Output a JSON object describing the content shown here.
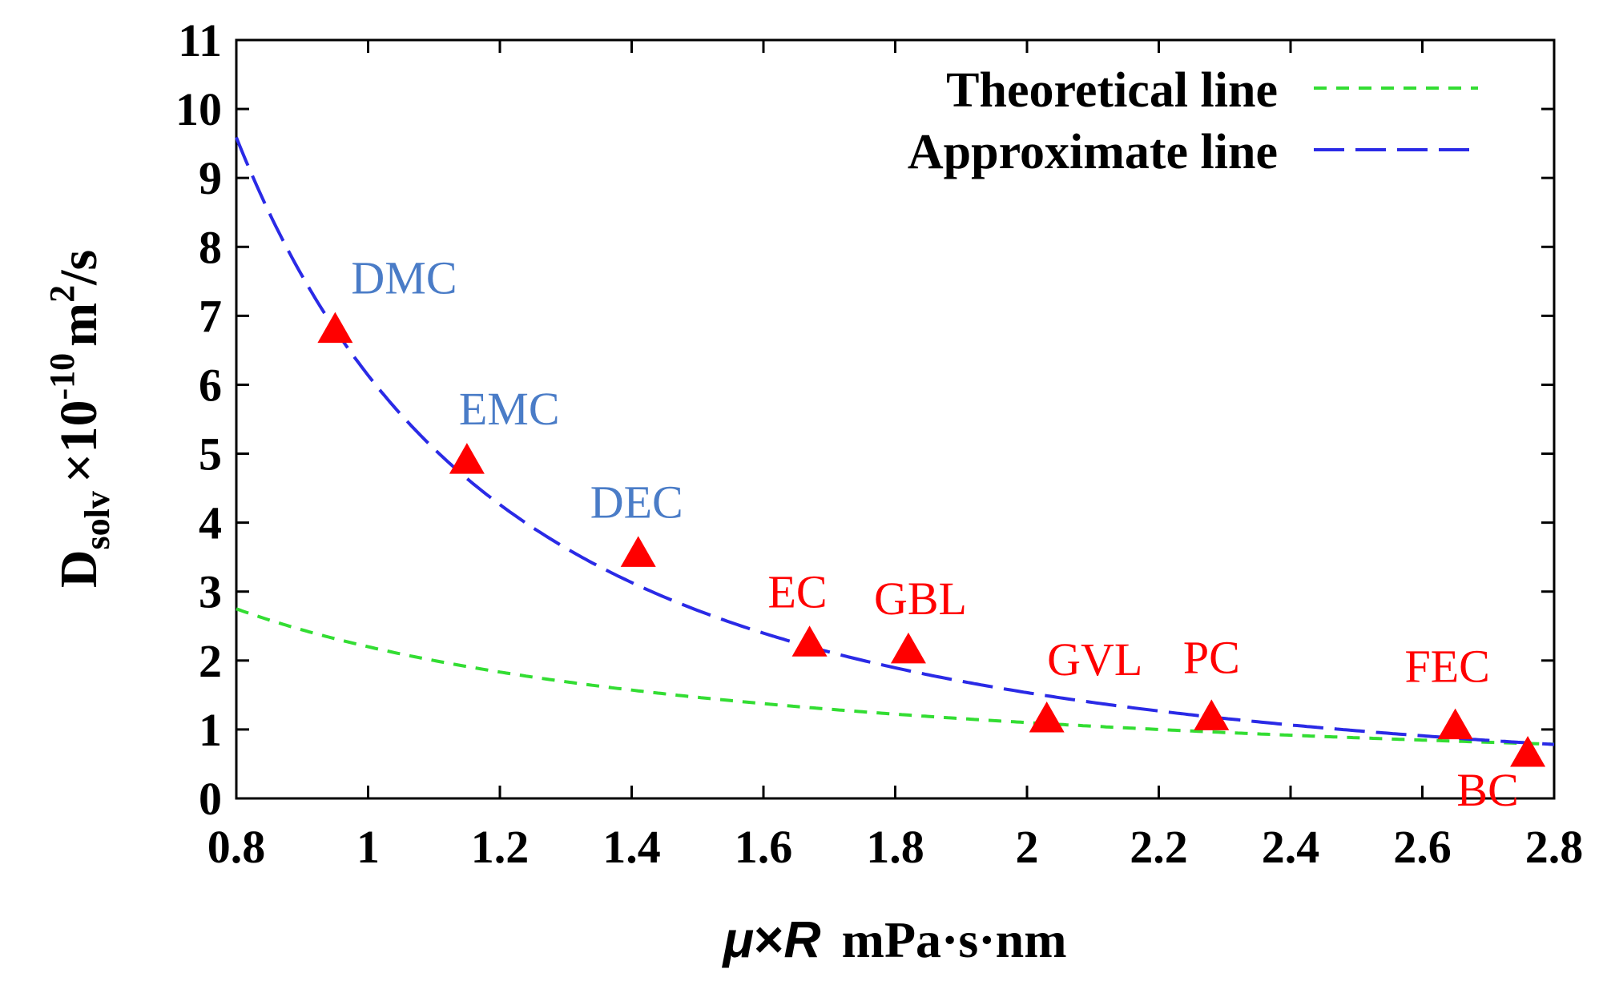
{
  "chart_data": {
    "type": "scatter",
    "title": "",
    "xlabel": {
      "symbol_mu": "μ",
      "times": "×",
      "symbol_R": "R",
      "unit": "mPa·s·nm"
    },
    "ylabel": {
      "base": "D",
      "sub": "solv",
      "mult": "×10",
      "exp": "-10",
      "unit_m": "m",
      "unit_exp": "2",
      "unit_s": "/s"
    },
    "xlim": [
      0.8,
      2.8
    ],
    "ylim": [
      0,
      11
    ],
    "xticks": [
      "0.8",
      "1",
      "1.2",
      "1.4",
      "1.6",
      "1.8",
      "2",
      "2.2",
      "2.4",
      "2.6",
      "2.8"
    ],
    "yticks": [
      "0",
      "1",
      "2",
      "3",
      "4",
      "5",
      "6",
      "7",
      "8",
      "9",
      "10",
      "11"
    ],
    "grid": false,
    "legend_position": "top-right",
    "colors": {
      "theoretical": "#33dd33",
      "approximate": "#2a2ae6",
      "points": "#ff0000",
      "label_blue": "#4a7cc7",
      "label_red": "#ff0000"
    },
    "series": [
      {
        "name": "Theoretical line",
        "kind": "line",
        "style": "dashed",
        "curve": "y = 2.2 / x"
      },
      {
        "name": "Approximate line",
        "kind": "line",
        "style": "long-dashed",
        "curve": "y = 6.8 * (x / 0.95)^-2"
      }
    ],
    "points": [
      {
        "label": "DMC",
        "x": 0.95,
        "y": 6.8,
        "label_color": "blue"
      },
      {
        "label": "EMC",
        "x": 1.15,
        "y": 4.9,
        "label_color": "blue"
      },
      {
        "label": "DEC",
        "x": 1.41,
        "y": 3.55,
        "label_color": "blue"
      },
      {
        "label": "EC",
        "x": 1.67,
        "y": 2.25,
        "label_color": "red"
      },
      {
        "label": "GBL",
        "x": 1.82,
        "y": 2.15,
        "label_color": "red"
      },
      {
        "label": "GVL",
        "x": 2.03,
        "y": 1.15,
        "label_color": "red"
      },
      {
        "label": "PC",
        "x": 2.28,
        "y": 1.18,
        "label_color": "red"
      },
      {
        "label": "FEC",
        "x": 2.65,
        "y": 1.05,
        "label_color": "red"
      },
      {
        "label": "BC",
        "x": 2.76,
        "y": 0.65,
        "label_color": "red"
      }
    ]
  }
}
